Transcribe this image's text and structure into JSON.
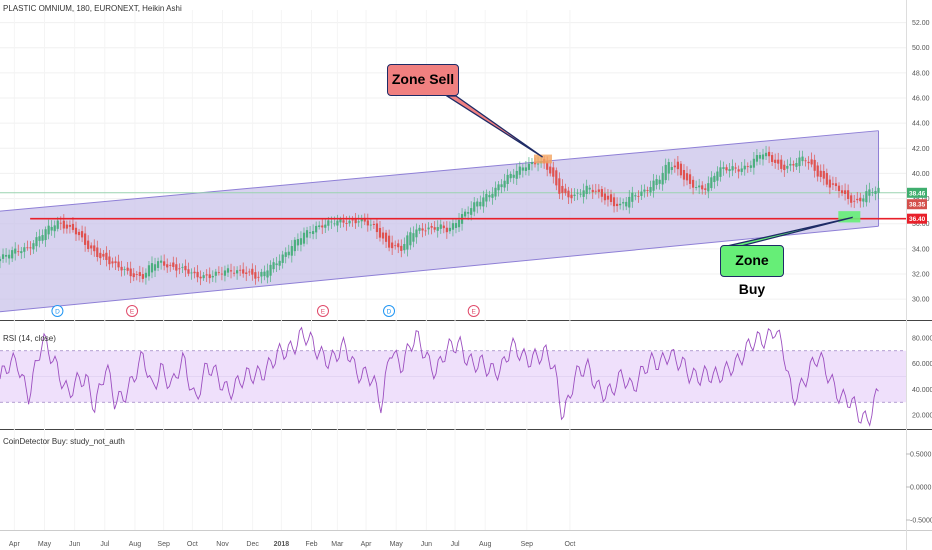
{
  "header": {
    "main_title": "PLASTIC OMNIUM, 180, EURONEXT, Heikin Ashi",
    "rsi_title": "RSI (14, close)",
    "coin_title": "CoinDetector Buy: study_not_auth"
  },
  "annotations": {
    "zone_sell": "Zone Sell",
    "zone_buy": "Zone Buy",
    "zone_sell_color": "#f08080",
    "zone_buy_color": "#66ee77"
  },
  "colors": {
    "channel_fill": "#c9c3ea",
    "channel_line": "#8e7fd6",
    "support_line": "#e8202a",
    "rsi_line": "#9c4fc0",
    "rsi_band": "#efe0fb",
    "up_candle": "#4caf7f",
    "down_candle": "#e0524f",
    "price_last_up": "#3fae6e",
    "price_last_down": "#d4504c",
    "price_support": "#e8202a"
  },
  "chart_data": [
    {
      "type": "candlestick",
      "title": "PLASTIC OMNIUM, 180, EURONEXT, Heikin Ashi",
      "x": [
        "Apr",
        "May",
        "Jun",
        "Jul",
        "Aug",
        "Sep",
        "Oct",
        "Nov",
        "Dec",
        "2018",
        "Feb",
        "Mar",
        "Apr",
        "May",
        "Jun",
        "Jul",
        "Aug",
        "Sep",
        "Oct"
      ],
      "yticks": [
        "52.00",
        "50.00",
        "48.00",
        "46.00",
        "44.00",
        "42.00",
        "40.00",
        "38.00",
        "36.00",
        "34.00",
        "32.00",
        "30.00"
      ],
      "ylim": [
        28.5,
        53
      ],
      "series": [
        {
          "key": [
            [
              0,
              33.2
            ],
            [
              0.5,
              33.8
            ],
            [
              1,
              34.2
            ],
            [
              2,
              36.2
            ],
            [
              2.6,
              35.4
            ],
            [
              3,
              34.2
            ],
            [
              3.6,
              33.3
            ],
            [
              4,
              32.6
            ],
            [
              4.6,
              32.0
            ],
            [
              5,
              31.8
            ],
            [
              5.3,
              32.8
            ],
            [
              5.6,
              32.9
            ],
            [
              6.3,
              32.4
            ],
            [
              6.8,
              31.8
            ],
            [
              7.2,
              31.9
            ],
            [
              8,
              32.2
            ],
            [
              8.5,
              32.3
            ],
            [
              9,
              31.6
            ],
            [
              9.4,
              32.6
            ],
            [
              10,
              33.8
            ],
            [
              10.6,
              35.2
            ],
            [
              11,
              35.8
            ],
            [
              11.4,
              36.0
            ],
            [
              12,
              36.2
            ],
            [
              12.5,
              36.3
            ],
            [
              13,
              35.7
            ],
            [
              13.5,
              34.4
            ],
            [
              14,
              33.9
            ],
            [
              14.3,
              35.3
            ],
            [
              14.7,
              35.7
            ],
            [
              15,
              35.6
            ],
            [
              15.3,
              35.7
            ],
            [
              15.6,
              35.4
            ],
            [
              16,
              36.6
            ],
            [
              16.5,
              37.4
            ],
            [
              17,
              38.3
            ],
            [
              17.5,
              39.4
            ],
            [
              18,
              40.1
            ],
            [
              18.3,
              40.7
            ],
            [
              18.7,
              41.0
            ],
            [
              19,
              40.6
            ],
            [
              19.5,
              38.5
            ],
            [
              20,
              38.2
            ],
            [
              20.5,
              38.8
            ],
            [
              21,
              38.3
            ],
            [
              21.3,
              37.6
            ],
            [
              21.6,
              37.3
            ],
            [
              22,
              38.3
            ],
            [
              22.5,
              38.7
            ],
            [
              23,
              39.6
            ],
            [
              23.3,
              41.0
            ],
            [
              23.7,
              40.1
            ],
            [
              24,
              39.0
            ],
            [
              24.5,
              38.7
            ],
            [
              25,
              40.4
            ],
            [
              25.3,
              40.3
            ],
            [
              25.7,
              40.3
            ],
            [
              26,
              40.6
            ],
            [
              26.5,
              41.6
            ],
            [
              26.8,
              41.2
            ],
            [
              27.2,
              40.5
            ],
            [
              27.6,
              40.7
            ],
            [
              28,
              41.2
            ],
            [
              28.5,
              40.0
            ],
            [
              28.9,
              39.0
            ],
            [
              29.2,
              38.7
            ],
            [
              29.5,
              38.0
            ],
            [
              29.9,
              37.8
            ],
            [
              30.2,
              38.5
            ],
            [
              30.6,
              38.6
            ]
          ],
          "name": "price"
        }
      ],
      "x_positions": [
        0.5,
        1.55,
        2.6,
        3.65,
        4.7,
        5.7,
        6.7,
        7.75,
        8.8,
        9.8,
        10.85,
        11.75,
        12.75,
        13.8,
        14.85,
        15.85,
        16.9,
        18.35,
        19.85
      ],
      "event_markers": [
        {
          "label": "D",
          "x": 2.0,
          "color": "#2196f3"
        },
        {
          "label": "E",
          "x": 4.6,
          "color": "#e04a6a"
        },
        {
          "label": "E",
          "x": 11.25,
          "color": "#e04a6a"
        },
        {
          "label": "D",
          "x": 13.55,
          "color": "#2196f3"
        },
        {
          "label": "E",
          "x": 16.5,
          "color": "#e04a6a"
        }
      ],
      "channel": {
        "upper_start": 37.0,
        "upper_end": 43.4,
        "lower_start": 29.0,
        "lower_end": 35.8
      },
      "support_level": 36.4,
      "last_price_labels": [
        "38.46",
        "38.35",
        "36.40"
      ],
      "last_price_values": [
        38.46,
        37.55,
        36.4
      ],
      "horizontal_line": 38.46
    },
    {
      "type": "line",
      "title": "RSI (14, close)",
      "yticks": [
        "80.0000",
        "60.0000",
        "40.0000",
        "20.0000"
      ],
      "ylim": [
        10,
        90
      ],
      "bands": [
        30,
        70
      ],
      "series": [
        {
          "name": "RSI",
          "key": [
            [
              0,
              48
            ],
            [
              0.6,
              62
            ],
            [
              1,
              38
            ],
            [
              1.5,
              75
            ],
            [
              2,
              60
            ],
            [
              2.4,
              35
            ],
            [
              3,
              50
            ],
            [
              3.3,
              30
            ],
            [
              3.7,
              55
            ],
            [
              4,
              28
            ],
            [
              4.5,
              45
            ],
            [
              5,
              62
            ],
            [
              5.3,
              40
            ],
            [
              5.6,
              60
            ],
            [
              6,
              40
            ],
            [
              6.4,
              62
            ],
            [
              6.8,
              35
            ],
            [
              7.2,
              55
            ],
            [
              7.6,
              48
            ],
            [
              8,
              42
            ],
            [
              8.5,
              45
            ],
            [
              9,
              55
            ],
            [
              9.5,
              60
            ],
            [
              10,
              70
            ],
            [
              10.5,
              85
            ],
            [
              11,
              68
            ],
            [
              11.5,
              66
            ],
            [
              12,
              70
            ],
            [
              12.4,
              55
            ],
            [
              12.8,
              55
            ],
            [
              13,
              45
            ],
            [
              13.3,
              22
            ],
            [
              13.6,
              75
            ],
            [
              14,
              60
            ],
            [
              14.5,
              78
            ],
            [
              14.8,
              70
            ],
            [
              15.2,
              55
            ],
            [
              15.5,
              65
            ],
            [
              16,
              78
            ],
            [
              16.5,
              58
            ],
            [
              17,
              55
            ],
            [
              17.5,
              60
            ],
            [
              17.8,
              70
            ],
            [
              18.2,
              65
            ],
            [
              18.6,
              68
            ],
            [
              19,
              65
            ],
            [
              19.3,
              55
            ],
            [
              19.6,
              22
            ],
            [
              20,
              48
            ],
            [
              20.5,
              55
            ],
            [
              21,
              40
            ],
            [
              21.3,
              35
            ],
            [
              21.7,
              50
            ],
            [
              22,
              45
            ],
            [
              22.5,
              55
            ],
            [
              23,
              62
            ],
            [
              23.3,
              72
            ],
            [
              23.6,
              60
            ],
            [
              24,
              50
            ],
            [
              24.5,
              55
            ],
            [
              25,
              45
            ],
            [
              25.5,
              62
            ],
            [
              26,
              68
            ],
            [
              26.5,
              80
            ],
            [
              27,
              88
            ],
            [
              27.3,
              65
            ],
            [
              27.6,
              32
            ],
            [
              28,
              50
            ],
            [
              28.5,
              62
            ],
            [
              29,
              48
            ],
            [
              29.3,
              35
            ],
            [
              29.7,
              25
            ],
            [
              30,
              18
            ],
            [
              30.3,
              22
            ],
            [
              30.6,
              40
            ]
          ]
        }
      ]
    },
    {
      "type": "line",
      "title": "CoinDetector Buy: study_not_auth",
      "yticks": [
        "0.5000",
        "0.0000",
        "-0.5000"
      ],
      "ylim": [
        -0.5,
        0.5
      ],
      "series": []
    }
  ]
}
